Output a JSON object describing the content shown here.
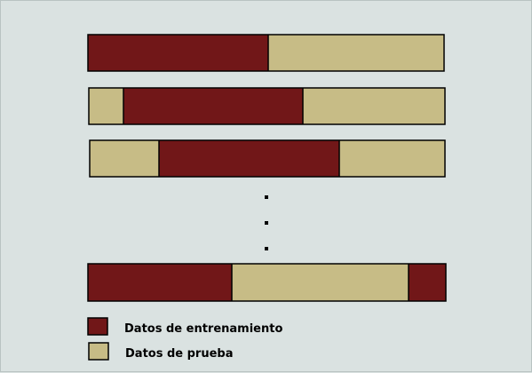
{
  "colors": {
    "background": "#dae2e1",
    "training": "#711718",
    "testing": "#c7bc86",
    "outline": "#000000"
  },
  "rows": [
    {
      "segments": [
        {
          "type": "training",
          "fraction": 0.505
        },
        {
          "type": "testing",
          "fraction": 0.495
        }
      ]
    },
    {
      "segments": [
        {
          "type": "testing",
          "fraction": 0.097
        },
        {
          "type": "training",
          "fraction": 0.503
        },
        {
          "type": "testing",
          "fraction": 0.4
        }
      ]
    },
    {
      "segments": [
        {
          "type": "testing",
          "fraction": 0.195
        },
        {
          "type": "training",
          "fraction": 0.508
        },
        {
          "type": "testing",
          "fraction": 0.297
        }
      ]
    },
    {
      "segments": [
        {
          "type": "training",
          "fraction": 0.401
        },
        {
          "type": "testing",
          "fraction": 0.495
        },
        {
          "type": "training",
          "fraction": 0.104
        }
      ]
    }
  ],
  "legend": {
    "training_label": "Datos de entrenamiento",
    "testing_label": "Datos de prueba"
  }
}
